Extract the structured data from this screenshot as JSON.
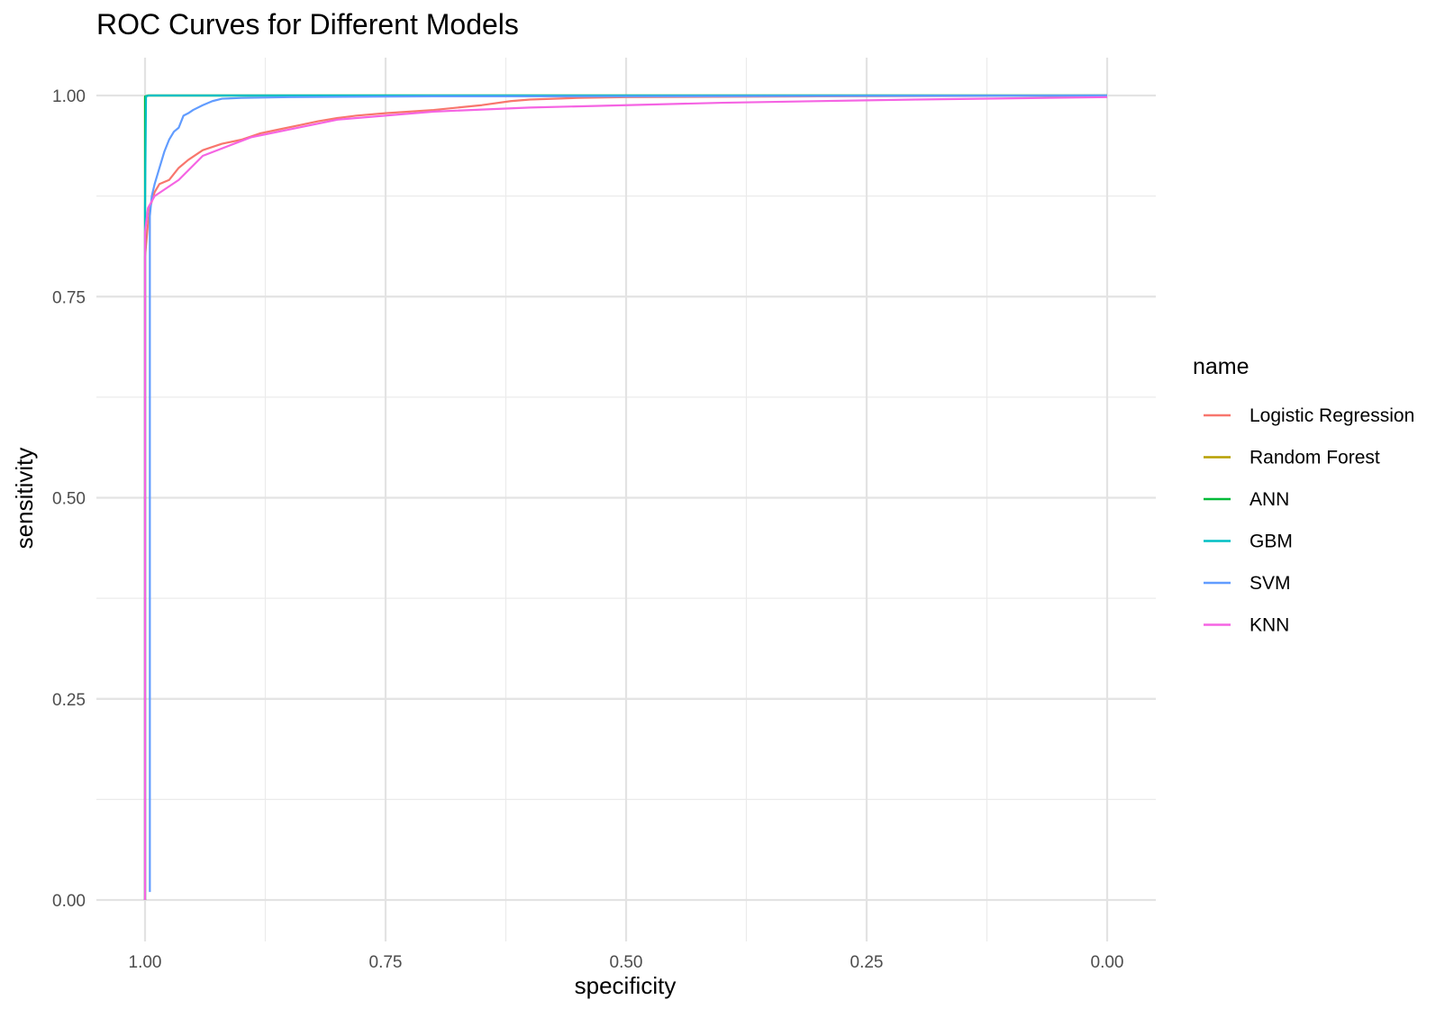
{
  "chart_data": {
    "type": "line",
    "title": "ROC Curves for Different Models",
    "xlabel": "specificity",
    "ylabel": "sensitivity",
    "x_reversed": true,
    "xlim": [
      1.0,
      0.0
    ],
    "ylim": [
      0.0,
      1.0
    ],
    "x_ticks": [
      "1.00",
      "0.75",
      "0.50",
      "0.25",
      "0.00"
    ],
    "x_tick_values": [
      1.0,
      0.75,
      0.5,
      0.25,
      0.0
    ],
    "y_ticks": [
      "0.00",
      "0.25",
      "0.50",
      "0.75",
      "1.00"
    ],
    "y_tick_values": [
      0.0,
      0.25,
      0.5,
      0.75,
      1.0
    ],
    "grid": true,
    "legend": {
      "title": "name",
      "placement": "right"
    },
    "series": [
      {
        "name": "Logistic Regression",
        "color": "#F8766D",
        "points": [
          [
            1.0,
            0.0
          ],
          [
            1.0,
            0.8
          ],
          [
            0.997,
            0.84
          ],
          [
            0.995,
            0.86
          ],
          [
            0.99,
            0.88
          ],
          [
            0.985,
            0.89
          ],
          [
            0.975,
            0.895
          ],
          [
            0.965,
            0.91
          ],
          [
            0.955,
            0.92
          ],
          [
            0.94,
            0.932
          ],
          [
            0.92,
            0.94
          ],
          [
            0.9,
            0.945
          ],
          [
            0.88,
            0.953
          ],
          [
            0.86,
            0.958
          ],
          [
            0.84,
            0.963
          ],
          [
            0.82,
            0.968
          ],
          [
            0.8,
            0.972
          ],
          [
            0.78,
            0.975
          ],
          [
            0.75,
            0.978
          ],
          [
            0.7,
            0.982
          ],
          [
            0.65,
            0.988
          ],
          [
            0.62,
            0.993
          ],
          [
            0.6,
            0.995
          ],
          [
            0.55,
            0.997
          ],
          [
            0.5,
            0.998
          ],
          [
            0.3,
            0.999
          ],
          [
            0.0,
            1.0
          ]
        ]
      },
      {
        "name": "Random Forest",
        "color": "#B79F00",
        "points": [
          [
            1.0,
            0.0
          ],
          [
            1.0,
            0.86
          ],
          [
            1.0,
            0.998
          ],
          [
            0.997,
            1.0
          ],
          [
            0.0,
            1.0
          ]
        ]
      },
      {
        "name": "ANN",
        "color": "#00BA38",
        "points": [
          [
            1.0,
            0.0
          ],
          [
            1.0,
            0.86
          ],
          [
            1.0,
            0.999
          ],
          [
            0.997,
            1.0
          ],
          [
            0.0,
            1.0
          ]
        ]
      },
      {
        "name": "GBM",
        "color": "#00BFC4",
        "points": [
          [
            1.0,
            0.0
          ],
          [
            1.0,
            0.86
          ],
          [
            0.999,
            0.999
          ],
          [
            0.996,
            1.0
          ],
          [
            0.0,
            1.0
          ]
        ]
      },
      {
        "name": "SVM",
        "color": "#619CFF",
        "points": [
          [
            0.995,
            0.01
          ],
          [
            0.995,
            0.85
          ],
          [
            0.993,
            0.875
          ],
          [
            0.99,
            0.89
          ],
          [
            0.985,
            0.91
          ],
          [
            0.98,
            0.93
          ],
          [
            0.975,
            0.945
          ],
          [
            0.97,
            0.955
          ],
          [
            0.965,
            0.96
          ],
          [
            0.96,
            0.975
          ],
          [
            0.955,
            0.978
          ],
          [
            0.95,
            0.982
          ],
          [
            0.94,
            0.988
          ],
          [
            0.93,
            0.993
          ],
          [
            0.92,
            0.996
          ],
          [
            0.9,
            0.997
          ],
          [
            0.85,
            0.998
          ],
          [
            0.7,
            0.999
          ],
          [
            0.5,
            0.999
          ],
          [
            0.0,
            1.0
          ]
        ]
      },
      {
        "name": "KNN",
        "color": "#F564E3",
        "points": [
          [
            1.0,
            0.0
          ],
          [
            1.0,
            0.83
          ],
          [
            0.997,
            0.86
          ],
          [
            0.99,
            0.875
          ],
          [
            0.965,
            0.895
          ],
          [
            0.94,
            0.925
          ],
          [
            0.89,
            0.948
          ],
          [
            0.8,
            0.97
          ],
          [
            0.7,
            0.98
          ],
          [
            0.6,
            0.985
          ],
          [
            0.5,
            0.988
          ],
          [
            0.4,
            0.991
          ],
          [
            0.2,
            0.995
          ],
          [
            0.0,
            0.998
          ]
        ]
      }
    ]
  }
}
